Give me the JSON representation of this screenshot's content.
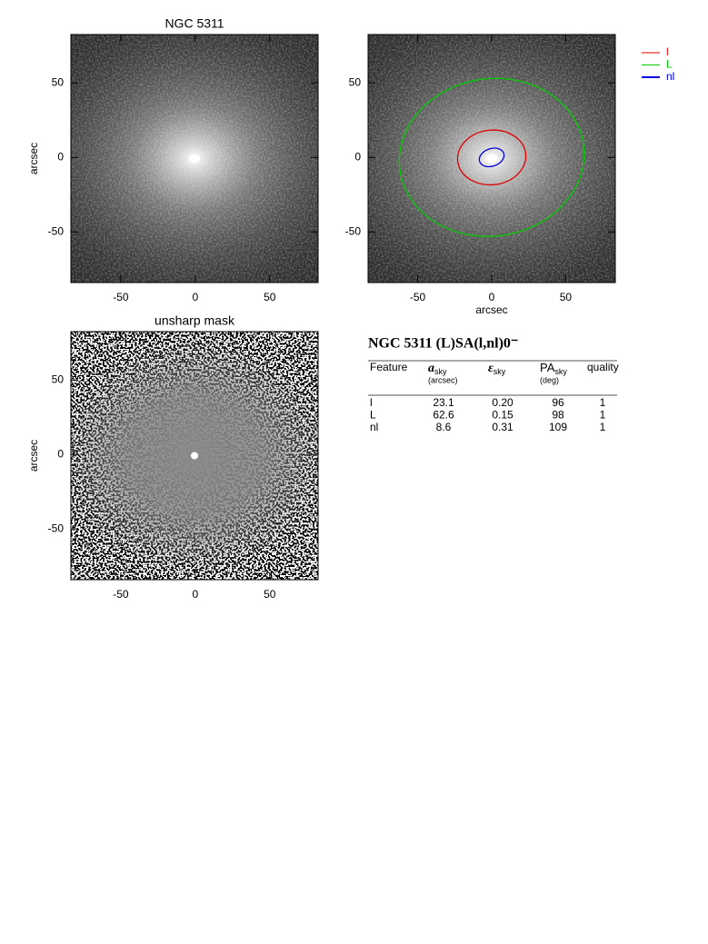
{
  "panels": [
    {
      "title": "NGC 5311",
      "ylabel": "arcsec",
      "image": "galaxy",
      "xlim": [
        -83.5,
        82.5
      ],
      "ylim": [
        -84,
        82.5
      ],
      "xticks": [
        -50,
        0,
        50
      ],
      "yticks": [
        -50,
        0,
        50
      ]
    },
    {
      "xlabel": "arcsec",
      "image": "galaxy",
      "overlay": true,
      "xlim": [
        -83.5,
        83.5
      ],
      "ylim": [
        -84,
        82.5
      ],
      "xticks": [
        -50,
        0,
        50
      ],
      "yticks": [
        -50,
        0,
        50
      ]
    },
    {
      "title": "unsharp mask",
      "ylabel": "arcsec",
      "image": "unsharp",
      "xlim": [
        -83.5,
        82.5
      ],
      "ylim": [
        -84,
        82.5
      ],
      "xticks": [
        -50,
        0,
        50
      ],
      "yticks": [
        -50,
        0,
        50
      ]
    }
  ],
  "table": {
    "title": "NGC 5311  (L)SA(l,nl)0⁻",
    "columns": [
      "Feature",
      {
        "symbol": "a",
        "sub": "sky",
        "unit": "(arcsec)"
      },
      {
        "symbol": "ε",
        "sub": "sky"
      },
      {
        "symbol": "PA",
        "sub": "sky",
        "unit": "(deg)"
      },
      "quality"
    ],
    "features": [
      {
        "name": "l",
        "a": 23.1,
        "eps": {
          "value": 0.2,
          "label": "0.20"
        },
        "pa": 96,
        "quality": 1,
        "color": "#e00000"
      },
      {
        "name": "L",
        "a": 62.6,
        "eps": {
          "value": 0.15,
          "label": "0.15"
        },
        "pa": 98,
        "quality": 1,
        "color": "#00cc00"
      },
      {
        "name": "nl",
        "a": 8.6,
        "eps": {
          "value": 0.31,
          "label": "0.31"
        },
        "pa": 109,
        "quality": 1,
        "color": "#0000dd"
      }
    ]
  }
}
